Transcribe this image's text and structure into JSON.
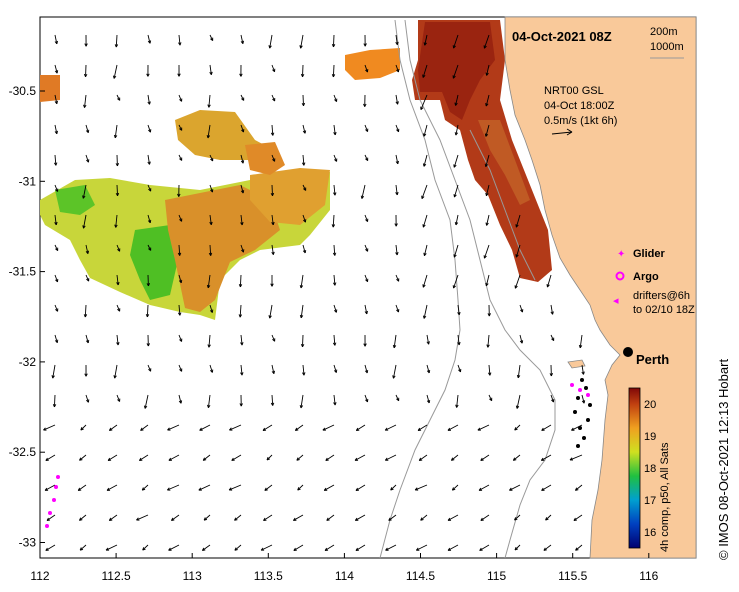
{
  "map": {
    "title": "04-Oct-2021 08Z",
    "depth_contours": [
      "200m",
      "1000m"
    ],
    "current_source": "NRT00 GSL",
    "current_time": "04-Oct 18:00Z",
    "scale_arrow_label": "0.5m/s (1kt 6h)",
    "city": "Perth",
    "credit": "© IMOS 08-Oct-2021 12:13 Hobart",
    "x_ticks": [
      "112",
      "112.5",
      "113",
      "113.5",
      "114",
      "114.5",
      "115",
      "115.5",
      "116"
    ],
    "y_ticks": [
      "-30.5",
      "-31",
      "-31.5",
      "-32",
      "-32.5",
      "-33"
    ],
    "lon_range": [
      112,
      116.3
    ],
    "lat_range": [
      -33.1,
      -30.05
    ],
    "legend": {
      "glider": "Glider",
      "argo": "Argo",
      "drifters_line1": "drifters@6h",
      "drifters_line2": "to 02/10 18Z"
    },
    "colorbar": {
      "label": "4h comp, p50, All Sats",
      "ticks": [
        "20",
        "19",
        "18",
        "17",
        "16"
      ],
      "range": [
        15.5,
        20.5
      ]
    },
    "colors": {
      "land": "#f9c99a",
      "contour": "#999999",
      "marker": "#ff00ff",
      "arrow": "#000000"
    }
  }
}
